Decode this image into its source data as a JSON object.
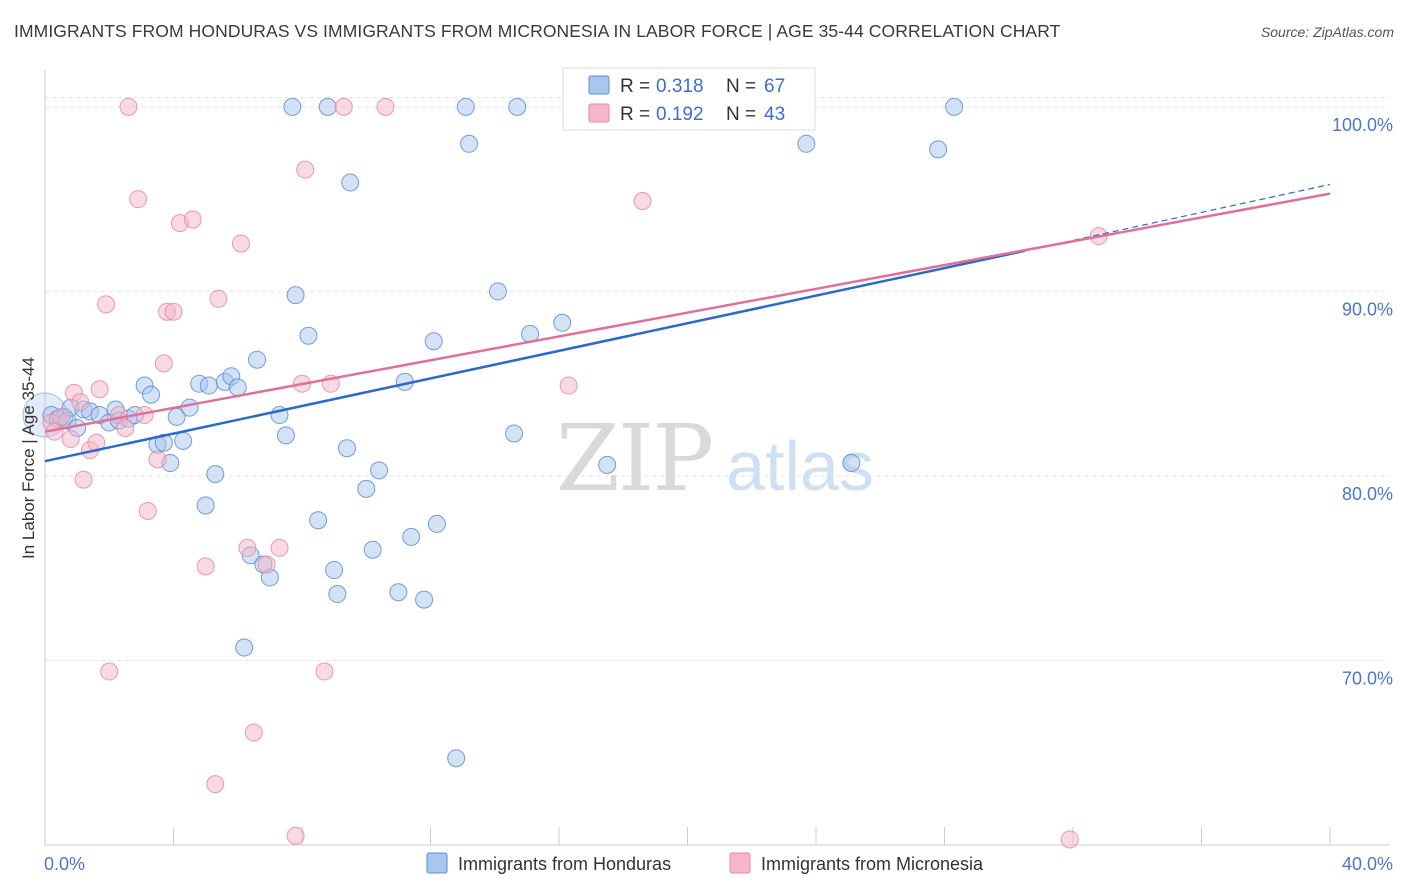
{
  "title": "IMMIGRANTS FROM HONDURAS VS IMMIGRANTS FROM MICRONESIA IN LABOR FORCE | AGE 35-44 CORRELATION CHART",
  "source": "Source: ZipAtlas.com",
  "watermark": {
    "zip": "ZIP",
    "atlas": "atlas"
  },
  "stats_legend": {
    "r_label": "R = ",
    "n_label": "N = ",
    "rows": [
      {
        "r": "0.318",
        "n": "67",
        "color": "#a9c6ee"
      },
      {
        "r": "0.192",
        "n": "43",
        "color": "#f4b6c8"
      }
    ]
  },
  "chart_data": {
    "type": "scatter",
    "xlabel": "",
    "ylabel": "In Labor Force | Age 35-44",
    "xlim": [
      0,
      40
    ],
    "ylim": [
      60,
      102
    ],
    "x_tick_labels": [
      {
        "value": 0,
        "label": "0.0%"
      },
      {
        "value": 40,
        "label": "40.0%"
      }
    ],
    "y_tick_labels": [
      {
        "value": 70,
        "label": "70.0%"
      },
      {
        "value": 80,
        "label": "80.0%"
      },
      {
        "value": 90,
        "label": "90.0%"
      },
      {
        "value": 100,
        "label": "100.0%"
      }
    ],
    "grid": true,
    "legend_position": "bottom-center",
    "series": [
      {
        "name": "Immigrants from Honduras",
        "color": "#5b8ed6",
        "fill": "#a9c6ee",
        "trend": {
          "x0": 0,
          "y0": 80.8,
          "x1": 30.5,
          "y1": 92.2,
          "color": "#2a6acb",
          "dashed_to": {
            "x": 40,
            "y": 95.8
          }
        },
        "points": [
          [
            0.2,
            83.3
          ],
          [
            0.4,
            83.1
          ],
          [
            0.6,
            83.2
          ],
          [
            0.7,
            83.0
          ],
          [
            0.8,
            83.7
          ],
          [
            1.0,
            82.6
          ],
          [
            1.2,
            83.6
          ],
          [
            1.4,
            83.5
          ],
          [
            1.7,
            83.3
          ],
          [
            2.0,
            82.9
          ],
          [
            2.2,
            83.6
          ],
          [
            2.3,
            83.0
          ],
          [
            2.6,
            83.1
          ],
          [
            2.8,
            83.3
          ],
          [
            3.1,
            84.9
          ],
          [
            3.3,
            84.4
          ],
          [
            3.5,
            81.7
          ],
          [
            3.7,
            81.8
          ],
          [
            3.9,
            80.7
          ],
          [
            4.1,
            83.2
          ],
          [
            4.3,
            81.9
          ],
          [
            4.5,
            83.7
          ],
          [
            4.8,
            85.0
          ],
          [
            5.0,
            78.4
          ],
          [
            5.1,
            84.9
          ],
          [
            5.3,
            80.1
          ],
          [
            5.6,
            85.1
          ],
          [
            5.8,
            85.4
          ],
          [
            6.0,
            84.8
          ],
          [
            6.2,
            70.7
          ],
          [
            6.4,
            75.7
          ],
          [
            6.6,
            86.3
          ],
          [
            6.8,
            75.2
          ],
          [
            7.0,
            74.5
          ],
          [
            7.3,
            83.3
          ],
          [
            7.5,
            82.2
          ],
          [
            7.7,
            100.0
          ],
          [
            7.8,
            89.8
          ],
          [
            8.2,
            87.6
          ],
          [
            8.5,
            77.6
          ],
          [
            8.8,
            100.0
          ],
          [
            9.0,
            74.9
          ],
          [
            9.1,
            73.6
          ],
          [
            9.4,
            81.5
          ],
          [
            9.5,
            95.9
          ],
          [
            10.0,
            79.3
          ],
          [
            10.2,
            76.0
          ],
          [
            10.4,
            80.3
          ],
          [
            11.0,
            73.7
          ],
          [
            11.2,
            85.1
          ],
          [
            11.4,
            76.7
          ],
          [
            11.8,
            73.3
          ],
          [
            12.1,
            87.3
          ],
          [
            12.2,
            77.4
          ],
          [
            12.8,
            64.7
          ],
          [
            13.1,
            100.0
          ],
          [
            13.2,
            98.0
          ],
          [
            14.1,
            90.0
          ],
          [
            14.6,
            82.3
          ],
          [
            14.7,
            100.0
          ],
          [
            15.1,
            87.7
          ],
          [
            16.1,
            88.3
          ],
          [
            17.5,
            80.6
          ],
          [
            23.7,
            98.0
          ],
          [
            25.1,
            80.7
          ],
          [
            27.8,
            97.7
          ],
          [
            28.3,
            100.0
          ]
        ]
      },
      {
        "name": "Immigrants from Micronesia",
        "color": "#e58aa6",
        "fill": "#f4b6c8",
        "trend": {
          "x0": 0,
          "y0": 82.4,
          "x1": 40,
          "y1": 95.3,
          "color": "#e0709a"
        },
        "points": [
          [
            0.2,
            82.9
          ],
          [
            0.3,
            82.4
          ],
          [
            0.5,
            83.2
          ],
          [
            0.8,
            82.0
          ],
          [
            0.9,
            84.5
          ],
          [
            1.1,
            84.0
          ],
          [
            1.2,
            79.8
          ],
          [
            1.4,
            81.4
          ],
          [
            1.6,
            81.8
          ],
          [
            1.7,
            84.7
          ],
          [
            1.9,
            89.3
          ],
          [
            2.0,
            69.4
          ],
          [
            2.3,
            83.3
          ],
          [
            2.5,
            82.6
          ],
          [
            2.6,
            100.0
          ],
          [
            2.9,
            95.0
          ],
          [
            3.1,
            83.3
          ],
          [
            3.2,
            78.1
          ],
          [
            3.5,
            80.9
          ],
          [
            3.7,
            86.1
          ],
          [
            3.8,
            88.9
          ],
          [
            4.0,
            88.9
          ],
          [
            4.2,
            93.7
          ],
          [
            4.6,
            93.9
          ],
          [
            5.0,
            75.1
          ],
          [
            5.4,
            89.6
          ],
          [
            5.3,
            63.3
          ],
          [
            6.1,
            92.6
          ],
          [
            6.3,
            76.1
          ],
          [
            6.5,
            66.1
          ],
          [
            6.9,
            75.2
          ],
          [
            7.3,
            76.1
          ],
          [
            7.8,
            60.5
          ],
          [
            8.0,
            85.0
          ],
          [
            8.1,
            96.6
          ],
          [
            8.7,
            69.4
          ],
          [
            8.9,
            85.0
          ],
          [
            9.3,
            100.0
          ],
          [
            10.6,
            100.0
          ],
          [
            18.6,
            94.9
          ],
          [
            32.8,
            93.0
          ],
          [
            31.9,
            60.3
          ],
          [
            16.3,
            84.9
          ]
        ]
      }
    ]
  }
}
